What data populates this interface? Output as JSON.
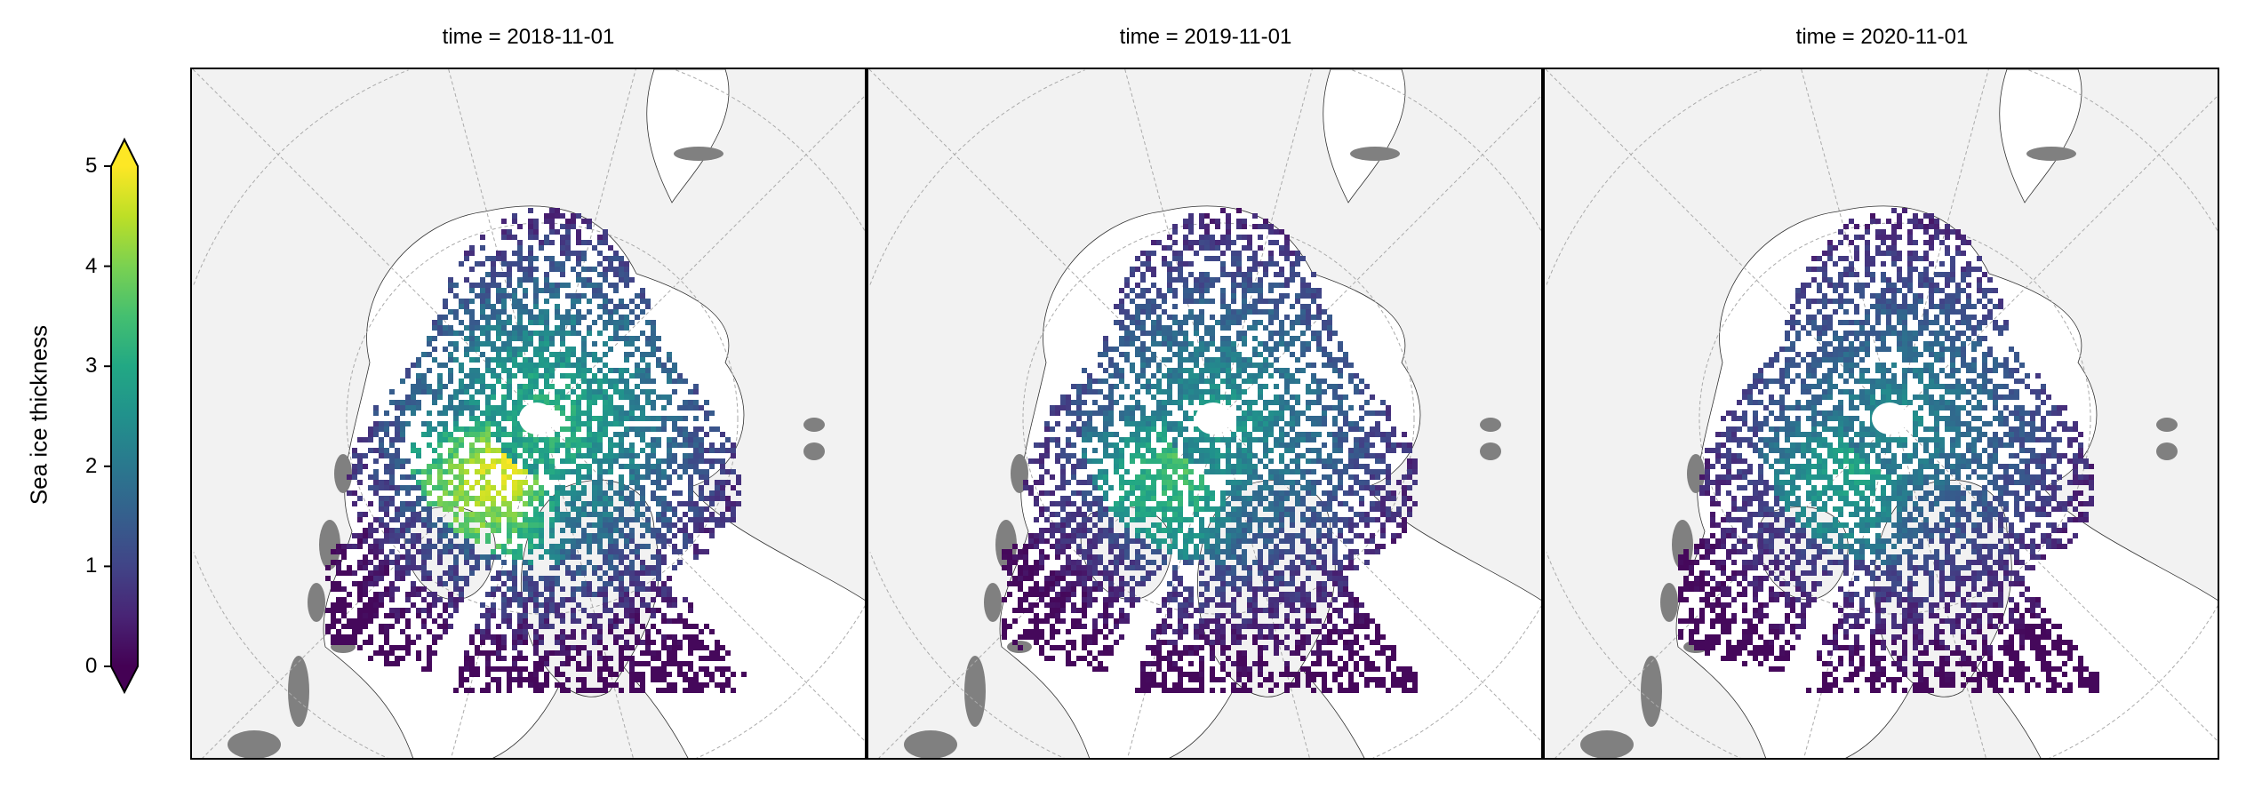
{
  "chart_data": {
    "type": "heatmap",
    "projection": "north-polar stereographic",
    "colormap": "viridis",
    "colorbar": {
      "label": "Sea ice thickness",
      "range": [
        0,
        5
      ],
      "ticks": [
        "0",
        "1",
        "2",
        "3",
        "4",
        "5"
      ],
      "extend": "both",
      "placement": "left"
    },
    "panels": [
      {
        "title": "time = 2018-11-01",
        "thick_bias": 1.0
      },
      {
        "title": "time = 2019-11-01",
        "thick_bias": 0.8
      },
      {
        "title": "time = 2020-11-01",
        "thick_bias": 0.7
      }
    ],
    "colors": {
      "land": "#f2f2f2",
      "ocean": "#ffffff",
      "lakes": "#808080",
      "coast": "#333333",
      "grid": "#aaaaaa"
    }
  }
}
